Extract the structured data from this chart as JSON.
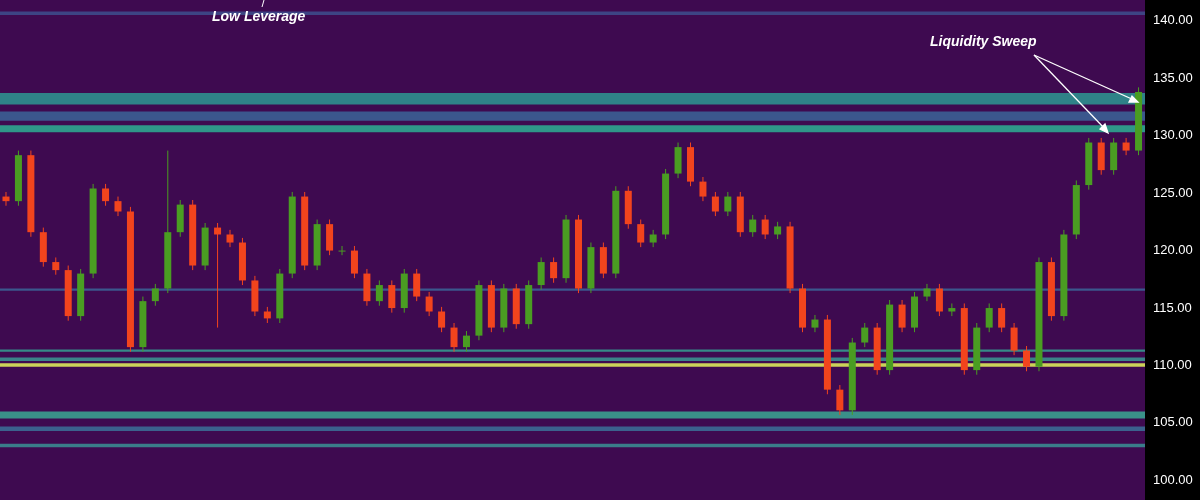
{
  "chart_data": {
    "type": "candlestick",
    "categories": [
      null,
      null,
      null,
      null,
      null,
      null,
      null,
      null,
      null,
      null,
      null,
      null,
      null,
      null,
      null,
      null,
      null,
      null,
      null,
      null,
      null,
      null,
      null,
      null,
      null,
      null,
      null,
      null,
      null,
      null,
      null,
      null,
      null,
      null,
      null,
      null,
      null,
      null,
      null,
      null,
      null,
      null,
      null,
      null,
      null,
      null,
      null,
      null,
      null,
      null,
      null,
      null,
      null,
      null,
      null,
      null,
      null,
      null,
      null,
      null,
      null,
      null,
      null,
      null,
      null,
      null,
      null,
      null,
      null,
      null,
      null,
      null,
      null,
      null,
      null,
      null,
      null,
      null,
      null,
      null,
      null,
      null,
      null,
      null,
      null,
      null,
      null,
      null,
      null,
      null,
      null,
      null
    ],
    "ohlc": [
      [
        124.6,
        125.0,
        123.8,
        124.2
      ],
      [
        124.2,
        128.6,
        123.8,
        128.2
      ],
      [
        128.2,
        128.6,
        121.1,
        121.5
      ],
      [
        121.5,
        121.9,
        118.5,
        118.9
      ],
      [
        118.9,
        119.3,
        117.8,
        118.2
      ],
      [
        118.2,
        118.6,
        113.8,
        114.2
      ],
      [
        114.2,
        118.3,
        113.8,
        117.9
      ],
      [
        117.9,
        125.7,
        117.5,
        125.3
      ],
      [
        125.3,
        125.7,
        123.8,
        124.2
      ],
      [
        124.2,
        124.6,
        122.9,
        123.3
      ],
      [
        123.3,
        123.7,
        111.1,
        111.5
      ],
      [
        111.5,
        115.9,
        111.1,
        115.5
      ],
      [
        115.5,
        117.0,
        115.1,
        116.6
      ],
      [
        116.6,
        128.6,
        116.2,
        121.5
      ],
      [
        121.5,
        124.3,
        121.1,
        123.9
      ],
      [
        123.9,
        124.3,
        118.2,
        118.6
      ],
      [
        118.6,
        122.3,
        118.2,
        121.9
      ],
      [
        121.9,
        122.3,
        113.2,
        121.3
      ],
      [
        121.3,
        121.7,
        120.2,
        120.6
      ],
      [
        120.6,
        121.0,
        116.9,
        117.3
      ],
      [
        117.3,
        117.7,
        114.2,
        114.6
      ],
      [
        114.6,
        115.0,
        113.6,
        114.0
      ],
      [
        114.0,
        118.3,
        113.6,
        117.9
      ],
      [
        117.9,
        125.0,
        117.5,
        124.6
      ],
      [
        124.6,
        125.0,
        118.2,
        118.6
      ],
      [
        118.6,
        122.6,
        118.2,
        122.2
      ],
      [
        122.2,
        122.6,
        119.5,
        119.9
      ],
      [
        119.9,
        120.3,
        119.5,
        119.9
      ],
      [
        119.9,
        120.3,
        117.5,
        117.9
      ],
      [
        117.9,
        118.3,
        115.1,
        115.5
      ],
      [
        115.5,
        117.3,
        115.1,
        116.9
      ],
      [
        116.9,
        117.3,
        114.5,
        114.9
      ],
      [
        114.9,
        118.3,
        114.5,
        117.9
      ],
      [
        117.9,
        118.3,
        115.5,
        115.9
      ],
      [
        115.9,
        116.3,
        114.2,
        114.6
      ],
      [
        114.6,
        115.0,
        112.8,
        113.2
      ],
      [
        113.2,
        113.6,
        111.1,
        111.5
      ],
      [
        111.5,
        112.9,
        111.1,
        112.5
      ],
      [
        112.5,
        117.3,
        112.1,
        116.9
      ],
      [
        116.9,
        117.3,
        112.8,
        113.2
      ],
      [
        113.2,
        117.0,
        112.8,
        116.6
      ],
      [
        116.6,
        117.0,
        113.1,
        113.5
      ],
      [
        113.5,
        117.3,
        113.1,
        116.9
      ],
      [
        116.9,
        119.3,
        116.5,
        118.9
      ],
      [
        118.9,
        119.3,
        117.1,
        117.5
      ],
      [
        117.5,
        123.0,
        117.1,
        122.6
      ],
      [
        122.6,
        123.0,
        116.2,
        116.6
      ],
      [
        116.6,
        120.6,
        116.2,
        120.2
      ],
      [
        120.2,
        120.6,
        117.5,
        117.9
      ],
      [
        117.9,
        125.5,
        117.5,
        125.1
      ],
      [
        125.1,
        125.5,
        121.8,
        122.2
      ],
      [
        122.2,
        122.6,
        120.2,
        120.6
      ],
      [
        120.6,
        121.7,
        120.2,
        121.3
      ],
      [
        121.3,
        127.0,
        120.9,
        126.6
      ],
      [
        126.6,
        129.3,
        126.2,
        128.9
      ],
      [
        128.9,
        129.3,
        125.5,
        125.9
      ],
      [
        125.9,
        126.3,
        124.2,
        124.6
      ],
      [
        124.6,
        125.0,
        122.9,
        123.3
      ],
      [
        123.3,
        125.0,
        122.9,
        124.6
      ],
      [
        124.6,
        125.0,
        121.1,
        121.5
      ],
      [
        121.5,
        123.0,
        121.1,
        122.6
      ],
      [
        122.6,
        123.0,
        120.9,
        121.3
      ],
      [
        121.3,
        122.4,
        120.9,
        122.0
      ],
      [
        122.0,
        122.4,
        116.2,
        116.6
      ],
      [
        116.6,
        117.0,
        112.8,
        113.2
      ],
      [
        113.2,
        114.3,
        112.8,
        113.9
      ],
      [
        113.9,
        114.3,
        107.4,
        107.8
      ],
      [
        107.8,
        108.2,
        105.6,
        106.0
      ],
      [
        106.0,
        112.3,
        105.6,
        111.9
      ],
      [
        111.9,
        113.6,
        111.5,
        113.2
      ],
      [
        113.2,
        113.6,
        109.1,
        109.5
      ],
      [
        109.5,
        115.6,
        109.1,
        115.2
      ],
      [
        115.2,
        115.6,
        112.8,
        113.2
      ],
      [
        113.2,
        116.3,
        112.8,
        115.9
      ],
      [
        115.9,
        117.0,
        115.5,
        116.6
      ],
      [
        116.6,
        117.0,
        114.2,
        114.6
      ],
      [
        114.6,
        115.3,
        114.2,
        114.9
      ],
      [
        114.9,
        115.3,
        109.1,
        109.5
      ],
      [
        109.5,
        113.6,
        109.1,
        113.2
      ],
      [
        113.2,
        115.3,
        112.8,
        114.9
      ],
      [
        114.9,
        115.3,
        112.8,
        113.2
      ],
      [
        113.2,
        113.6,
        110.8,
        111.2
      ],
      [
        111.2,
        111.6,
        109.4,
        109.8
      ],
      [
        109.8,
        119.3,
        109.4,
        118.9
      ],
      [
        118.9,
        119.3,
        113.8,
        114.2
      ],
      [
        114.2,
        121.7,
        113.8,
        121.3
      ],
      [
        121.3,
        126.0,
        120.9,
        125.6
      ],
      [
        125.6,
        129.7,
        125.2,
        129.3
      ],
      [
        129.3,
        129.7,
        126.5,
        126.9
      ],
      [
        126.9,
        129.7,
        126.5,
        129.3
      ],
      [
        129.3,
        129.7,
        128.2,
        128.6
      ],
      [
        128.6,
        134.1,
        128.2,
        133.7
      ]
    ],
    "ylim": [
      98.2,
      141.7
    ],
    "yticks": [
      {
        "value": 100,
        "label": "100.00"
      },
      {
        "value": 105,
        "label": "105.00"
      },
      {
        "value": 110,
        "label": "110.00"
      },
      {
        "value": 115,
        "label": "115.00"
      },
      {
        "value": 120,
        "label": "120.00"
      },
      {
        "value": 125,
        "label": "125.00"
      },
      {
        "value": 130,
        "label": "130.00"
      },
      {
        "value": 135,
        "label": "135.00"
      },
      {
        "value": 140,
        "label": "140.00"
      }
    ],
    "bands": [
      {
        "axis": "y",
        "from": 140.4,
        "to": 140.7,
        "color": "#3d4a8a"
      },
      {
        "axis": "y",
        "from": 132.6,
        "to": 133.6,
        "color": "#2e8f8e"
      },
      {
        "axis": "y",
        "from": 131.2,
        "to": 132.0,
        "color": "#3b5f94"
      },
      {
        "axis": "y",
        "from": 130.2,
        "to": 130.8,
        "color": "#2ea58f"
      },
      {
        "axis": "y",
        "from": 116.4,
        "to": 116.6,
        "color": "#3b5f94"
      },
      {
        "axis": "y",
        "from": 111.1,
        "to": 111.3,
        "color": "#35978e"
      },
      {
        "axis": "y",
        "from": 110.3,
        "to": 110.6,
        "color": "#3b8f8f"
      },
      {
        "axis": "y",
        "from": 109.8,
        "to": 110.1,
        "color": "#dbe85a"
      },
      {
        "axis": "y",
        "from": 105.3,
        "to": 105.9,
        "color": "#3aa08f"
      },
      {
        "axis": "y",
        "from": 104.2,
        "to": 104.6,
        "color": "#3b6a94"
      },
      {
        "axis": "y",
        "from": 102.8,
        "to": 103.1,
        "color": "#3a8a90"
      }
    ],
    "annotations": [
      "Low Leverage",
      "Liquidity Sweep"
    ],
    "tick_labels": "y"
  }
}
